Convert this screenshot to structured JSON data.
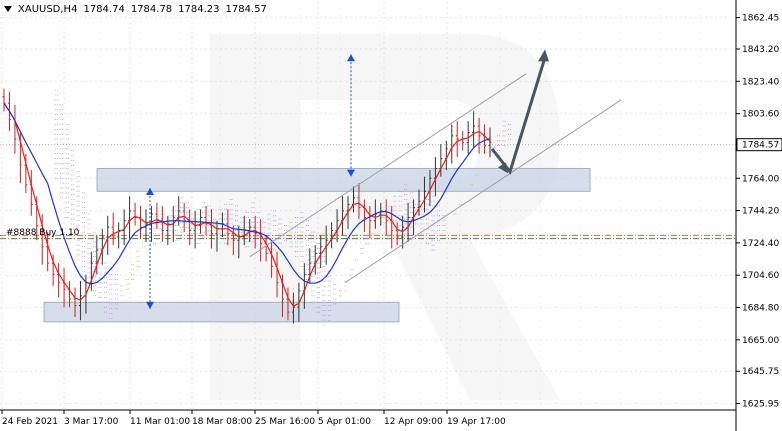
{
  "header": {
    "symbol": "XAUUSD,H4",
    "open": "1784.74",
    "high": "1784.78",
    "low": "1784.23",
    "close": "1784.57"
  },
  "chart_data": {
    "type": "candlestick",
    "instrument": "XAUUSD",
    "timeframe": "H4",
    "ylim": [
      1622,
      1872
    ],
    "y_ticks": [
      "1862.45",
      "1843.20",
      "1823.40",
      "1803.60",
      "1784.57",
      "1764.00",
      "1744.20",
      "1724.40",
      "1704.60",
      "1684.80",
      "1665.00",
      "1645.75",
      "1625.95"
    ],
    "current_price": "1784.57",
    "x_ticks": [
      "24 Feb 2021",
      "3 Mar 17:00",
      "11 Mar 01:00",
      "18 Mar 08:00",
      "25 Mar 16:00",
      "5 Apr 01:00",
      "12 Apr 09:00",
      "19 Apr 17:00"
    ],
    "annotations": [
      "#8888 Buy 1.10"
    ],
    "price_series": [
      1810,
      1800,
      1788,
      1772,
      1760,
      1748,
      1735,
      1722,
      1712,
      1705,
      1700,
      1696,
      1690,
      1686,
      1692,
      1700,
      1712,
      1720,
      1728,
      1734,
      1728,
      1732,
      1738,
      1744,
      1740,
      1734,
      1736,
      1742,
      1738,
      1732,
      1736,
      1740,
      1744,
      1738,
      1732,
      1735,
      1740,
      1736,
      1730,
      1733,
      1736,
      1730,
      1726,
      1728,
      1732,
      1734,
      1730,
      1724,
      1718,
      1710,
      1700,
      1690,
      1682,
      1685,
      1695,
      1705,
      1712,
      1718,
      1722,
      1726,
      1732,
      1738,
      1744,
      1748,
      1752,
      1746,
      1740,
      1738,
      1742,
      1744,
      1738,
      1732,
      1728,
      1734,
      1740,
      1746,
      1750,
      1756,
      1764,
      1770,
      1776,
      1782,
      1790,
      1788,
      1786,
      1792,
      1796,
      1790,
      1784,
      1786
    ]
  }
}
